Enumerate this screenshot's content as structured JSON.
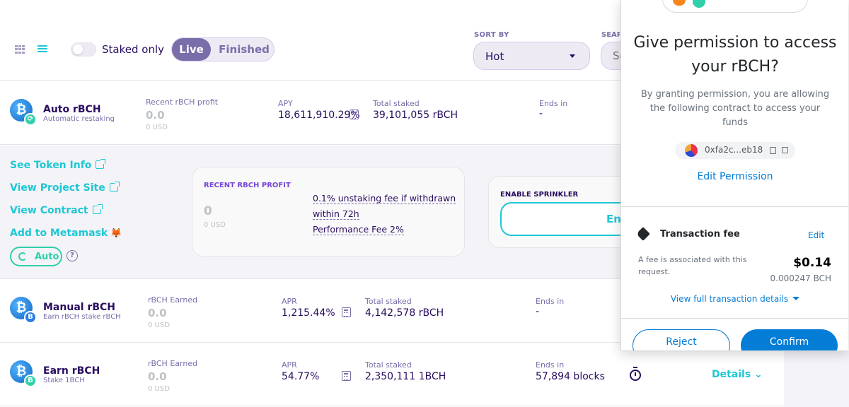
{
  "toolbar": {
    "staked_only_label": "Staked only",
    "tab_live": "Live",
    "tab_finished": "Finished",
    "sort_by_label": "SORT BY",
    "sort_value": "Hot",
    "search_label": "SEARCH",
    "search_placeholder": "Search Pools"
  },
  "pools": [
    {
      "name": "Auto rBCH",
      "subtitle": "Automatic restaking",
      "profit_label": "Recent rBCH profit",
      "profit_value": "0.0",
      "profit_usd": "0 USD",
      "rate_label": "APY",
      "rate_value": "18,611,910.29%",
      "staked_label": "Total staked",
      "staked_value": "39,101,055 rBCH",
      "ends_label": "Ends in",
      "ends_value": "-"
    },
    {
      "name": "Manual rBCH",
      "subtitle": "Earn rBCH stake rBCH",
      "profit_label": "rBCH Earned",
      "profit_value": "0.0",
      "profit_usd": "0 USD",
      "rate_label": "APR",
      "rate_value": "1,215.44%",
      "staked_label": "Total staked",
      "staked_value": "4,142,578 rBCH",
      "ends_label": "Ends in",
      "ends_value": "-"
    },
    {
      "name": "Earn rBCH",
      "subtitle": "Stake 1BCH",
      "profit_label": "rBCH Earned",
      "profit_value": "0.0",
      "profit_usd": "0 USD",
      "rate_label": "APR",
      "rate_value": "54.77%",
      "staked_label": "Total staked",
      "staked_value": "2,350,111 1BCH",
      "ends_label": "Ends in",
      "ends_value": "57,894 blocks",
      "details": "Details ⌄"
    }
  ],
  "expanded": {
    "links": [
      "See Token Info",
      "View Project Site",
      "View Contract",
      "Add to Metamask"
    ],
    "auto_label": "Auto",
    "profit_card_label": "RECENT RBCH PROFIT",
    "profit_value": "0",
    "profit_usd": "0 USD",
    "fee_line1": "0.1% unstaking fee if withdrawn",
    "fee_line2": "within 72h",
    "fee_line3": "Performance Fee 2%",
    "sprinkler_label": "ENABLE SPRINKLER",
    "enable_button": "Enable"
  },
  "popup": {
    "title": "Give permission to access your rBCH?",
    "description": "By granting permission, you are allowing the following contract to access your funds",
    "address": "0xfa2c...eb18",
    "edit_permission": "Edit Permission",
    "fee_title": "Transaction fee",
    "fee_edit": "Edit",
    "fee_note": "A fee is associated with this request.",
    "fee_amount": "$0.14",
    "fee_bch": "0.000247 BCH",
    "view_details": "View full transaction details",
    "reject": "Reject",
    "confirm": "Confirm"
  },
  "colors": {
    "accent_teal": "#1fc7d4",
    "accent_purple": "#7a6eaa",
    "text_dark": "#280d5f",
    "metamask_blue": "#037dd6",
    "success_green": "#31d0aa"
  }
}
